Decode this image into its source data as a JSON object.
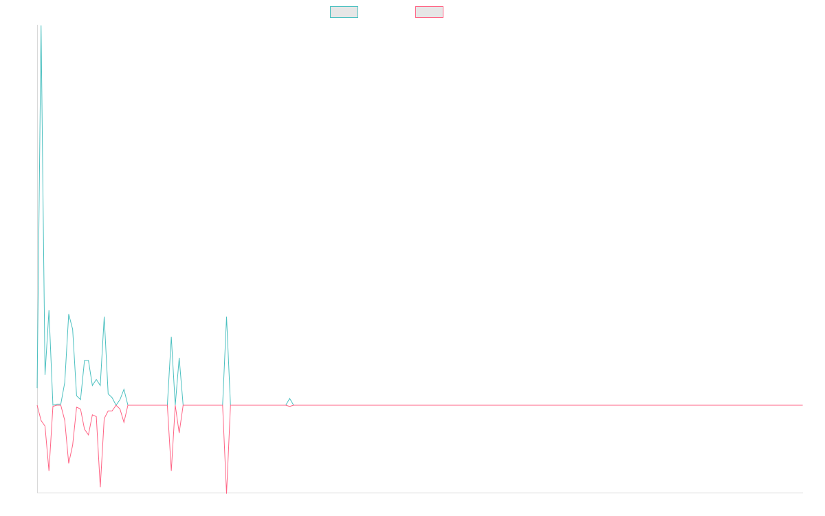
{
  "chart_data": {
    "type": "line",
    "title": "",
    "xlabel": "",
    "ylabel": "",
    "grid": false,
    "legend": "top-center",
    "x_count": 195,
    "ylim": [
      -0.23,
      1.0
    ],
    "series": [
      {
        "color": "#4bc0c0",
        "fill": "#e6e6e6",
        "values": [
          0.045,
          1.0,
          0.08,
          0.25,
          0.0,
          0.003,
          0.003,
          0.06,
          0.24,
          0.2,
          0.025,
          0.015,
          0.118,
          0.118,
          0.052,
          0.068,
          0.052,
          0.233,
          0.03,
          0.02,
          0.0,
          0.015,
          0.042,
          0.0,
          0.0,
          0.0,
          0.0,
          0.0,
          0.0,
          0.0,
          0.0,
          0.0,
          0.0,
          0.0,
          0.18,
          0.0,
          0.125,
          0.0,
          0.0,
          0.0,
          0.0,
          0.0,
          0.0,
          0.0,
          0.0,
          0.0,
          0.0,
          0.0,
          0.233,
          0.0,
          0.0,
          0.0,
          0.0,
          0.0,
          0.0,
          0.0,
          0.0,
          0.0,
          0.0,
          0.0,
          0.0,
          0.0,
          0.0,
          0.0,
          0.018,
          0.0
        ]
      },
      {
        "color": "#ff6384",
        "fill": "#e6e6e6",
        "values": [
          0.0,
          -0.04,
          -0.055,
          -0.173,
          -0.003,
          0.0,
          0.0,
          -0.04,
          -0.153,
          -0.105,
          -0.005,
          -0.01,
          -0.063,
          -0.078,
          -0.025,
          -0.03,
          -0.216,
          -0.035,
          -0.015,
          -0.015,
          0.0,
          -0.01,
          -0.045,
          0.0,
          0.0,
          0.0,
          0.0,
          0.0,
          0.0,
          0.0,
          0.0,
          0.0,
          0.0,
          0.0,
          -0.173,
          0.0,
          -0.073,
          0.0,
          0.0,
          0.0,
          0.0,
          0.0,
          0.0,
          0.0,
          0.0,
          0.0,
          0.0,
          0.0,
          -0.233,
          0.0,
          0.0,
          0.0,
          0.0,
          0.0,
          0.0,
          0.0,
          0.0,
          0.0,
          0.0,
          0.0,
          0.0,
          0.0,
          0.0,
          0.0,
          -0.003,
          0.0
        ]
      }
    ]
  }
}
